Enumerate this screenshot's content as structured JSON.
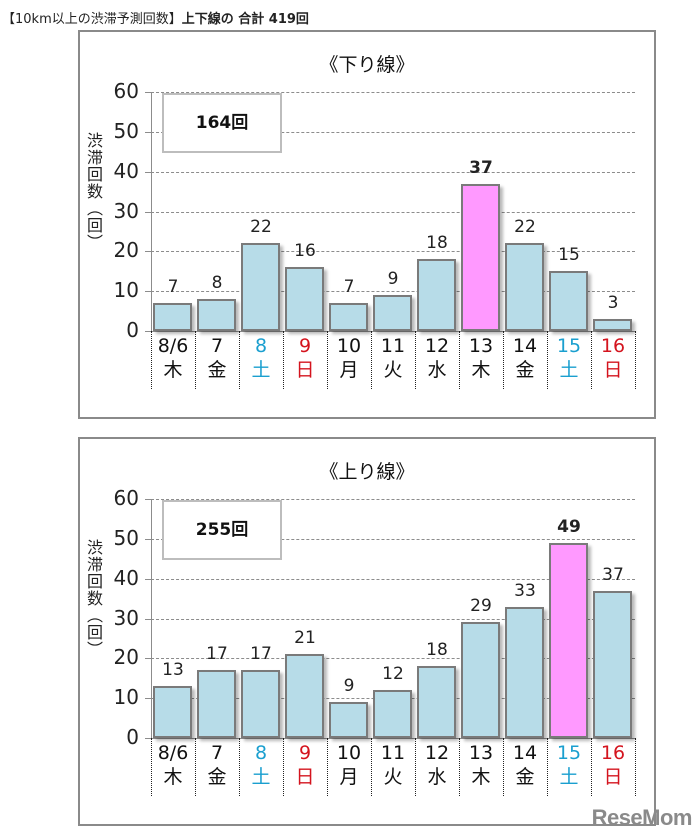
{
  "heading": {
    "prefix": "【10km以上の渋滞予測回数】",
    "bold": "上下線の 合計 419回"
  },
  "colors": {
    "bar_normal": "#b7dce8",
    "bar_highlight": "#ff99ff",
    "saturday": "#1a9fcf",
    "sunday": "#d4141e",
    "weekday": "#111111"
  },
  "charts": [
    {
      "title": "《下り線》",
      "total_label": "164回",
      "y_title": [
        "渋",
        "滞",
        "回",
        "数",
        "︵",
        "回",
        "︶"
      ]
    },
    {
      "title": "《上り線》",
      "total_label": "255回",
      "y_title": [
        "渋",
        "滞",
        "回",
        "数",
        "︵",
        "回",
        "︶"
      ]
    }
  ],
  "watermark": "ReseMom",
  "chart_data": [
    {
      "type": "bar",
      "title": "《下り線》",
      "annotation": "164回",
      "ylabel": "渋滞回数(回)",
      "ylim": [
        0,
        60
      ],
      "yticks": [
        0,
        10,
        20,
        30,
        40,
        50,
        60
      ],
      "grid": true,
      "categories": [
        "8/6",
        "7",
        "8",
        "9",
        "10",
        "11",
        "12",
        "13",
        "14",
        "15",
        "16"
      ],
      "days_of_week": [
        "木",
        "金",
        "土",
        "日",
        "月",
        "火",
        "水",
        "木",
        "金",
        "土",
        "日"
      ],
      "values": [
        7,
        8,
        22,
        16,
        7,
        9,
        18,
        37,
        22,
        15,
        3
      ],
      "highlight_index": 7
    },
    {
      "type": "bar",
      "title": "《上り線》",
      "annotation": "255回",
      "ylabel": "渋滞回数(回)",
      "ylim": [
        0,
        60
      ],
      "yticks": [
        0,
        10,
        20,
        30,
        40,
        50,
        60
      ],
      "grid": true,
      "categories": [
        "8/6",
        "7",
        "8",
        "9",
        "10",
        "11",
        "12",
        "13",
        "14",
        "15",
        "16"
      ],
      "days_of_week": [
        "木",
        "金",
        "土",
        "日",
        "月",
        "火",
        "水",
        "木",
        "金",
        "土",
        "日"
      ],
      "values": [
        13,
        17,
        17,
        21,
        9,
        12,
        18,
        29,
        33,
        49,
        37
      ],
      "highlight_index": 9
    }
  ]
}
